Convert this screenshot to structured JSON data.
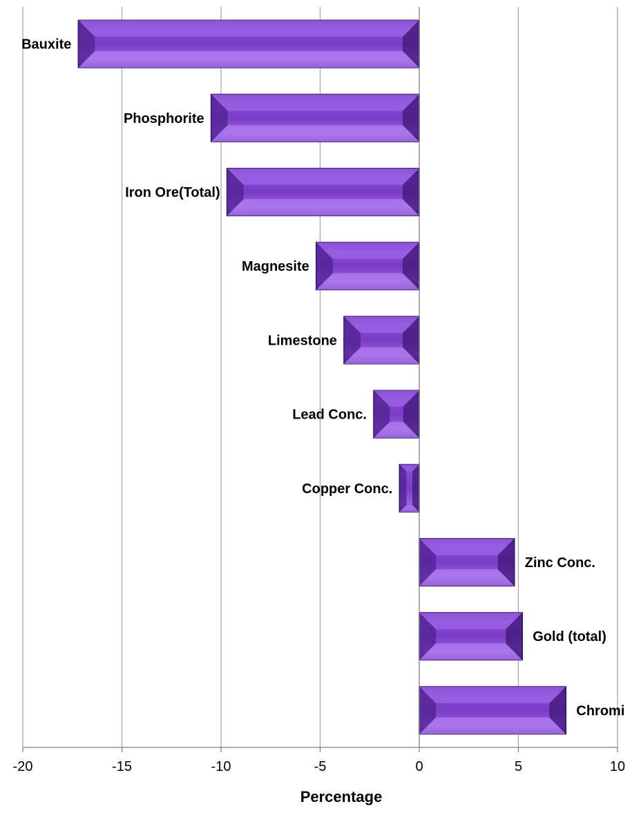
{
  "chart_data": {
    "type": "bar",
    "orientation": "horizontal",
    "categories": [
      "Bauxite",
      "Phosphorite",
      "Iron Ore(Total)",
      "Magnesite",
      "Limestone",
      "Lead Conc.",
      "Copper Conc.",
      "Zinc Conc.",
      "Gold (total)",
      "Chromi"
    ],
    "values": [
      -17.2,
      -10.5,
      -9.7,
      -5.2,
      -3.8,
      -2.3,
      -1.0,
      4.8,
      5.2,
      7.4
    ],
    "title": "",
    "xlabel": "Percentage",
    "ylabel": "",
    "xlim": [
      -20,
      10
    ],
    "x_ticks": [
      "-20",
      "-15",
      "-10",
      "-5",
      "0",
      "5",
      "10"
    ],
    "grid": "vertical",
    "legend": "none",
    "bar_color": "#7a3cc0"
  }
}
